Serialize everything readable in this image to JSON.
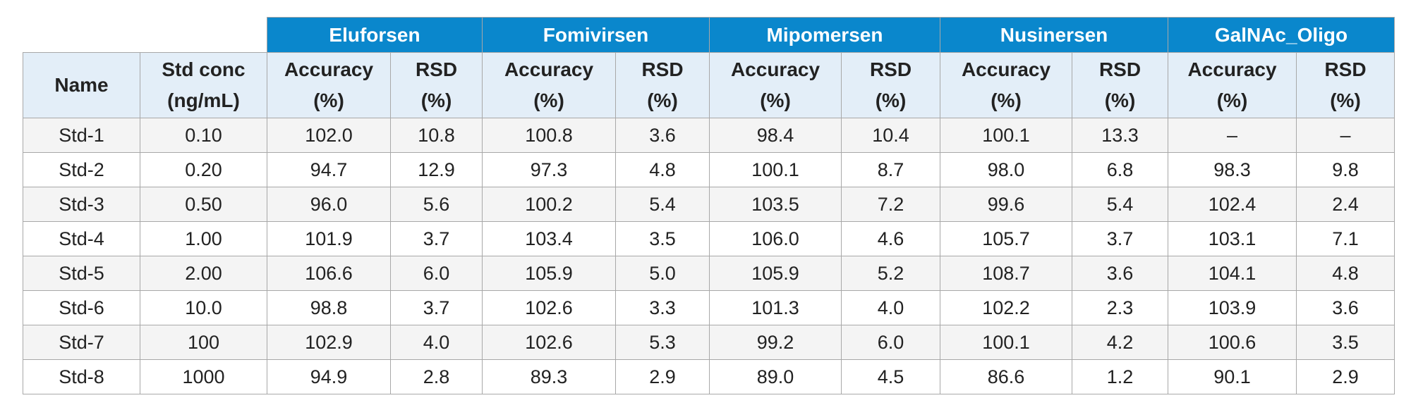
{
  "table": {
    "corner": {
      "name_header": "Name",
      "conc_header_line1": "Std conc",
      "conc_header_line2": "(ng/mL)"
    },
    "groups": [
      "Eluforsen",
      "Fomivirsen",
      "Mipomersen",
      "Nusinersen",
      "GalNAc_Oligo"
    ],
    "sub_headers": {
      "accuracy_line1": "Accuracy",
      "accuracy_line2": "(%)",
      "rsd_line1": "RSD",
      "rsd_line2": "(%)"
    },
    "rows": [
      {
        "name": "Std-1",
        "conc": "0.10",
        "vals": [
          "102.0",
          "10.8",
          "100.8",
          "3.6",
          "98.4",
          "10.4",
          "100.1",
          "13.3",
          "–",
          "–"
        ]
      },
      {
        "name": "Std-2",
        "conc": "0.20",
        "vals": [
          "94.7",
          "12.9",
          "97.3",
          "4.8",
          "100.1",
          "8.7",
          "98.0",
          "6.8",
          "98.3",
          "9.8"
        ]
      },
      {
        "name": "Std-3",
        "conc": "0.50",
        "vals": [
          "96.0",
          "5.6",
          "100.2",
          "5.4",
          "103.5",
          "7.2",
          "99.6",
          "5.4",
          "102.4",
          "2.4"
        ]
      },
      {
        "name": "Std-4",
        "conc": "1.00",
        "vals": [
          "101.9",
          "3.7",
          "103.4",
          "3.5",
          "106.0",
          "4.6",
          "105.7",
          "3.7",
          "103.1",
          "7.1"
        ]
      },
      {
        "name": "Std-5",
        "conc": "2.00",
        "vals": [
          "106.6",
          "6.0",
          "105.9",
          "5.0",
          "105.9",
          "5.2",
          "108.7",
          "3.6",
          "104.1",
          "4.8"
        ]
      },
      {
        "name": "Std-6",
        "conc": "10.0",
        "vals": [
          "98.8",
          "3.7",
          "102.6",
          "3.3",
          "101.3",
          "4.0",
          "102.2",
          "2.3",
          "103.9",
          "3.6"
        ]
      },
      {
        "name": "Std-7",
        "conc": "100",
        "vals": [
          "102.9",
          "4.0",
          "102.6",
          "5.3",
          "99.2",
          "6.0",
          "100.1",
          "4.2",
          "100.6",
          "3.5"
        ]
      },
      {
        "name": "Std-8",
        "conc": "1000",
        "vals": [
          "94.9",
          "2.8",
          "89.3",
          "2.9",
          "89.0",
          "4.5",
          "86.6",
          "1.2",
          "90.1",
          "2.9"
        ]
      }
    ]
  },
  "colors": {
    "group_header_bg": "#0a87cc",
    "sub_header_bg": "#e3eef8",
    "odd_row_bg": "#f4f4f4",
    "border": "#a8a8a8"
  }
}
